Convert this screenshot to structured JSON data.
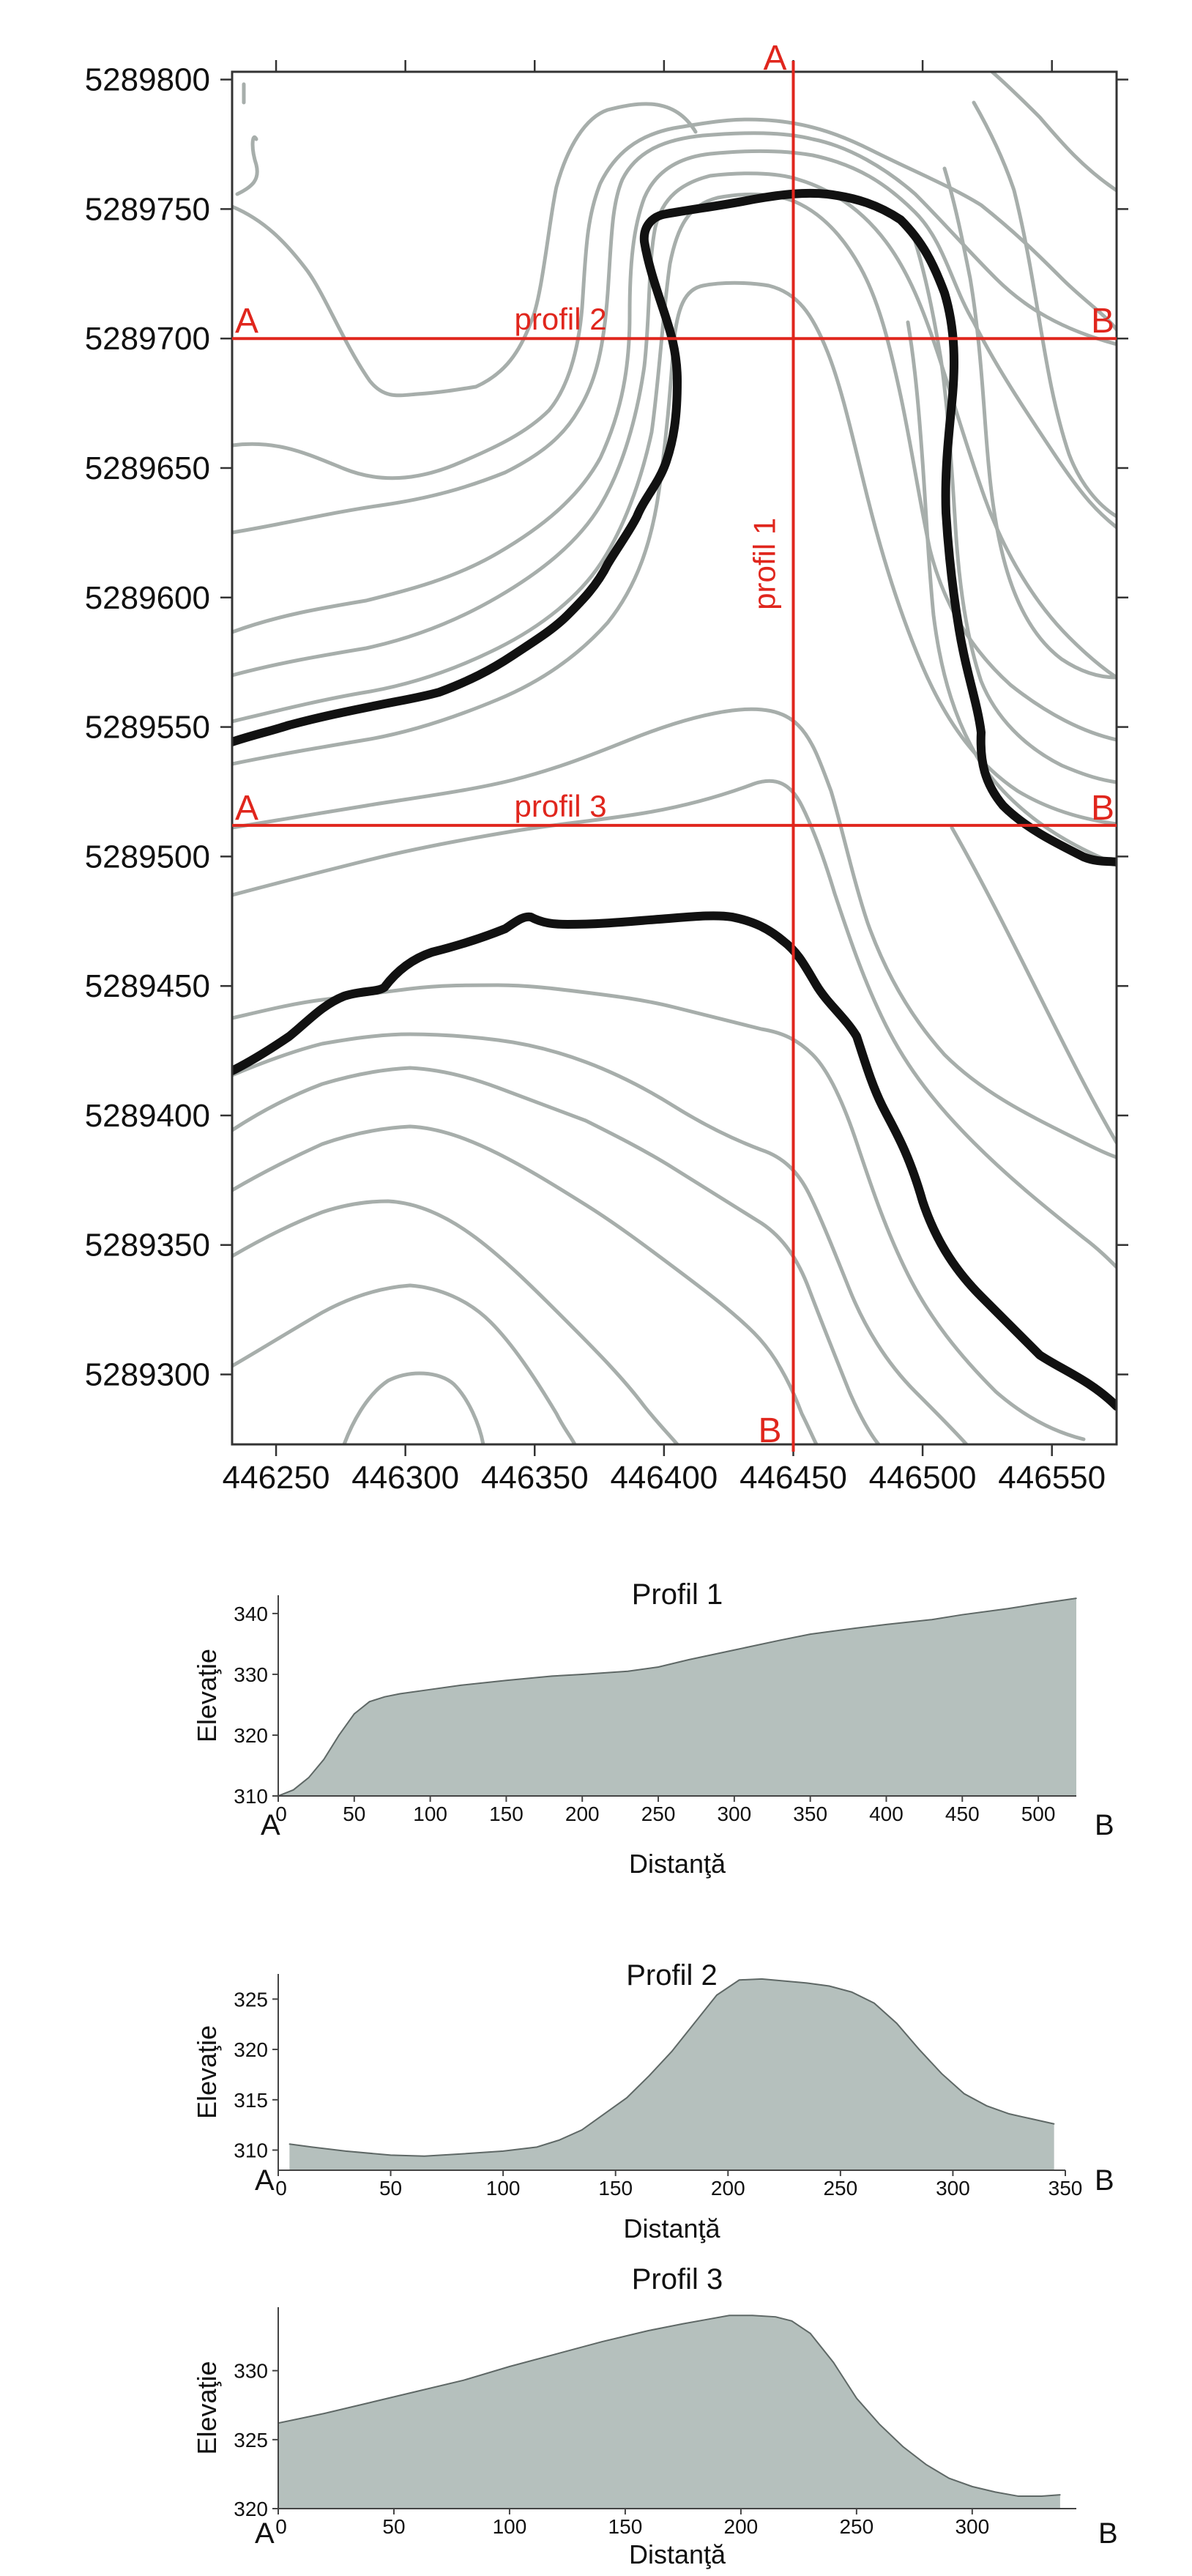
{
  "colors": {
    "contour": "#a7aeab",
    "index_contour": "#111111",
    "profile_line": "#e0261d",
    "profile_label": "#e0261d",
    "area_fill": "#b5c0bd",
    "area_stroke": "#5f6866",
    "axis": "#444444",
    "text": "#111111"
  },
  "map": {
    "xlim": [
      446233,
      446575
    ],
    "ylim": [
      5289273,
      5289803
    ],
    "x_ticks": [
      "446250",
      "446300",
      "446350",
      "446400",
      "446450",
      "446500",
      "446550"
    ],
    "y_ticks": [
      "5289800",
      "5289750",
      "5289700",
      "5289650",
      "5289600",
      "5289550",
      "5289500",
      "5289450",
      "5289400",
      "5289350",
      "5289300"
    ],
    "profile_lines": [
      {
        "name": "profil 1",
        "orientation": "vertical",
        "x": 446450,
        "label_start": "A",
        "label_end": "B"
      },
      {
        "name": "profil 2",
        "orientation": "horizontal",
        "y": 5289700,
        "label_start": "A",
        "label_end": "B"
      },
      {
        "name": "profil 3",
        "orientation": "horizontal",
        "y": 5289512,
        "label_start": "A",
        "label_end": "B"
      }
    ]
  },
  "chart_data": [
    {
      "type": "area",
      "title": "Profil 1",
      "xlabel": "Distanţă",
      "ylabel": "Elevaţie",
      "start_label": "A",
      "end_label": "B",
      "xlim": [
        0,
        525
      ],
      "ylim": [
        310,
        343
      ],
      "x_ticks": [
        0,
        50,
        100,
        150,
        200,
        250,
        300,
        350,
        400,
        450,
        500
      ],
      "y_ticks": [
        310,
        320,
        330,
        340
      ],
      "x": [
        0,
        10,
        20,
        30,
        40,
        50,
        55,
        60,
        70,
        80,
        100,
        120,
        150,
        180,
        200,
        230,
        250,
        270,
        300,
        330,
        350,
        380,
        400,
        430,
        450,
        480,
        500,
        525
      ],
      "y": [
        310,
        311,
        313,
        316,
        320,
        323.5,
        324.5,
        325.5,
        326.3,
        326.8,
        327.5,
        328.2,
        329,
        329.7,
        330,
        330.5,
        331.2,
        332.4,
        334,
        335.6,
        336.6,
        337.6,
        338.2,
        339,
        339.8,
        340.8,
        341.6,
        342.5
      ]
    },
    {
      "type": "area",
      "title": "Profil 2",
      "xlabel": "Distanţă",
      "ylabel": "Elevaţie",
      "start_label": "A",
      "end_label": "B",
      "xlim": [
        0,
        350
      ],
      "ylim": [
        308,
        327.5
      ],
      "x_ticks": [
        0,
        50,
        100,
        150,
        200,
        250,
        300,
        350
      ],
      "y_ticks": [
        310,
        315,
        320,
        325
      ],
      "x": [
        5,
        15,
        30,
        50,
        65,
        80,
        100,
        115,
        125,
        135,
        145,
        155,
        165,
        175,
        185,
        195,
        205,
        215,
        225,
        235,
        245,
        255,
        265,
        275,
        285,
        295,
        305,
        315,
        325,
        335,
        345
      ],
      "y": [
        310.6,
        310.3,
        309.9,
        309.5,
        309.4,
        309.6,
        309.9,
        310.3,
        311,
        312,
        313.6,
        315.2,
        317.4,
        319.8,
        322.6,
        325.4,
        326.9,
        327.0,
        326.8,
        326.6,
        326.3,
        325.7,
        324.6,
        322.6,
        320.0,
        317.6,
        315.6,
        314.4,
        313.6,
        313.1,
        312.6
      ]
    },
    {
      "type": "area",
      "title": "Profil 3",
      "xlabel": "Distanţă",
      "ylabel": "Elevaţie",
      "start_label": "A",
      "end_label": "B",
      "xlim": [
        0,
        345
      ],
      "ylim": [
        320,
        334.6
      ],
      "x_ticks": [
        0,
        50,
        100,
        150,
        200,
        250,
        300
      ],
      "y_ticks": [
        320,
        325,
        330
      ],
      "x": [
        0,
        20,
        40,
        60,
        80,
        100,
        120,
        140,
        160,
        175,
        185,
        195,
        205,
        215,
        222,
        230,
        240,
        250,
        260,
        270,
        280,
        290,
        300,
        310,
        320,
        330,
        338
      ],
      "y": [
        326.2,
        326.9,
        327.7,
        328.5,
        329.3,
        330.3,
        331.2,
        332.1,
        332.9,
        333.4,
        333.7,
        334.0,
        334.0,
        333.9,
        333.6,
        332.7,
        330.6,
        328.0,
        326.1,
        324.5,
        323.2,
        322.2,
        321.6,
        321.2,
        320.9,
        320.9,
        321.0
      ]
    }
  ]
}
